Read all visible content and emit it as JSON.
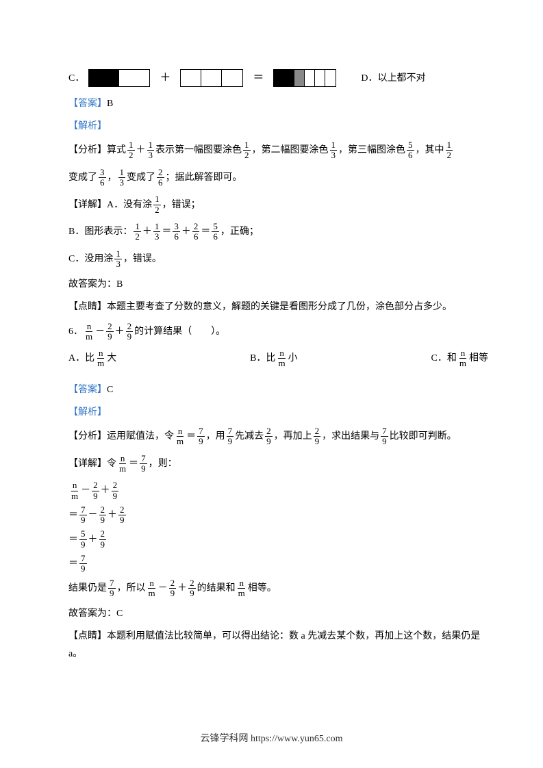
{
  "q5": {
    "optC_label": "C．",
    "plus": "＋",
    "eq": "＝",
    "optD": "D．以上都不对",
    "answer_label": "【答案】",
    "answer": "B",
    "analysis_label": "【解析】",
    "analysis_tag": "【分析】",
    "analysis_p1_a": "算式",
    "f_1_2_n": "1",
    "f_1_2_d": "2",
    "f_1_3_n": "1",
    "f_1_3_d": "3",
    "analysis_p1_b": "表示第一幅图要涂色",
    "analysis_p1_c": "，第二幅图要涂色",
    "analysis_p1_d": "，第三幅图涂色",
    "f_5_6_n": "5",
    "f_5_6_d": "6",
    "analysis_p1_e": "，其中",
    "line2_a": "变成了",
    "f_3_6_n": "3",
    "f_3_6_d": "6",
    "line2_b": "，",
    "line2_c": "变成了",
    "f_2_6_n": "2",
    "f_2_6_d": "6",
    "line2_d": "；据此解答即可。",
    "detail_tag": "【详解】",
    "detail_a": "A．没有涂",
    "detail_a2": "，错误；",
    "detail_b1": "B．图形表示：",
    "detail_b2": "，正确；",
    "detail_c": "C．没用涂",
    "detail_c2": "，错误。",
    "conclude": "故答案为：B",
    "point_tag": "【点睛】",
    "point": "本题主要考查了分数的意义，解题的关键是看图形分成了几份，涂色部分占多少。"
  },
  "q6": {
    "num": "6．",
    "f_n_m_n": "n",
    "f_n_m_d": "m",
    "f_2_9_n": "2",
    "f_2_9_d": "9",
    "stem_a": "的计算结果（　　）。",
    "minus": "－",
    "plus": "＋",
    "optA": "A．比",
    "optA2": "大",
    "optB": "B．比",
    "optB2": "小",
    "optC": "C．和",
    "optC2": "相等",
    "answer_label": "【答案】",
    "answer": "C",
    "analysis_label": "【解析】",
    "analysis_tag": "【分析】",
    "ana_a": "运用赋值法，令",
    "eq": "＝",
    "f_7_9_n": "7",
    "f_7_9_d": "9",
    "ana_b": "，用",
    "ana_c": "先减去",
    "ana_d": "，再加上",
    "ana_e": "，求出结果与",
    "ana_f": "比较即可判断。",
    "detail_tag": "【详解】",
    "det_a": "令",
    "det_b": "，则：",
    "f_5_9_n": "5",
    "f_5_9_d": "9",
    "res_a": "结果仍是",
    "res_b": "，所以",
    "res_c": "的结果和",
    "res_d": "相等。",
    "conclude": "故答案为：C",
    "point_tag": "【点睛】",
    "point": "本题利用赋值法比较简单，可以得出结论：数 a 先减去某个数，再加上这个数，结果仍是 a。"
  },
  "footer": {
    "text": "云锋学科网 https://www.yun65.com"
  },
  "colors": {
    "label_color": "#2f75c7",
    "text_color": "#000000",
    "bg": "#ffffff"
  }
}
